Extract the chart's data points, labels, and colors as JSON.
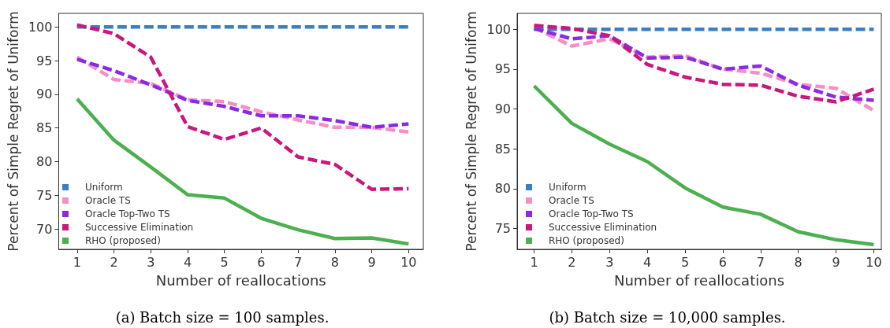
{
  "chart_data": [
    {
      "type": "line",
      "title": "(a) Batch size = 100 samples.",
      "xlabel": "Number of reallocations",
      "ylabel": "Percent of Simple Regret of Uniform",
      "x": [
        1,
        2,
        3,
        4,
        5,
        6,
        7,
        8,
        9,
        10
      ],
      "xlim": [
        0.5,
        10.4
      ],
      "xticks": [
        1,
        2,
        3,
        4,
        5,
        6,
        7,
        8,
        9,
        10
      ],
      "ylim": [
        67,
        102
      ],
      "yticks": [
        70,
        75,
        80,
        85,
        90,
        95,
        100
      ],
      "grid": false,
      "legend": "bottom left",
      "marker": "none",
      "series": [
        {
          "name": "Uniform",
          "color": "#3a7fc1",
          "line_style": "dashed",
          "values": [
            100,
            100,
            100,
            100,
            100,
            100,
            100,
            100,
            100,
            100
          ]
        },
        {
          "name": "Oracle TS",
          "color": "#f78fc4",
          "line_style": "dashed",
          "values": [
            95.5,
            92.2,
            91.6,
            89.2,
            88.9,
            87.4,
            86.2,
            85.1,
            85.1,
            84.4
          ]
        },
        {
          "name": "Oracle Top-Two TS",
          "color": "#8a2be2",
          "line_style": "dashed",
          "values": [
            95.2,
            93.5,
            91.4,
            89.1,
            88.2,
            86.8,
            86.8,
            86.1,
            85.1,
            85.6
          ]
        },
        {
          "name": "Successive Elimination",
          "color": "#c9177e",
          "line_style": "dashed",
          "values": [
            100.3,
            99,
            95.5,
            85.2,
            83.3,
            85,
            80.7,
            79.6,
            75.9,
            76
          ]
        },
        {
          "name": "RHO (proposed)",
          "color": "#4caf50",
          "line_style": "solid",
          "values": [
            89.3,
            83.2,
            79.2,
            75.1,
            74.6,
            71.6,
            69.9,
            68.6,
            68.7,
            67.8
          ]
        }
      ]
    },
    {
      "type": "line",
      "title": "(b) Batch size = 10,000 samples.",
      "xlabel": "Number of reallocations",
      "ylabel": "Percent of Simple Regret of Uniform",
      "x": [
        1,
        2,
        3,
        4,
        5,
        6,
        7,
        8,
        9,
        10
      ],
      "xlim": [
        0.55,
        10.2
      ],
      "xticks": [
        1,
        2,
        3,
        4,
        5,
        6,
        7,
        8,
        9,
        10
      ],
      "ylim": [
        72.4,
        102
      ],
      "yticks": [
        75,
        80,
        85,
        90,
        95,
        100
      ],
      "grid": false,
      "legend": "bottom left",
      "marker": "none",
      "series": [
        {
          "name": "Uniform",
          "color": "#3a7fc1",
          "line_style": "dashed",
          "values": [
            100,
            100,
            100,
            100,
            100,
            100,
            100,
            100,
            100,
            100
          ]
        },
        {
          "name": "Oracle TS",
          "color": "#f78fc4",
          "line_style": "dashed",
          "values": [
            100.2,
            97.9,
            98.8,
            96.5,
            96.7,
            95,
            94.5,
            93.1,
            92.6,
            89.8
          ]
        },
        {
          "name": "Oracle Top-Two TS",
          "color": "#8a2be2",
          "line_style": "dashed",
          "values": [
            100.1,
            98.8,
            99.2,
            96.4,
            96.5,
            95,
            95.4,
            93,
            91.5,
            91.1
          ]
        },
        {
          "name": "Successive Elimination",
          "color": "#c9177e",
          "line_style": "dashed",
          "values": [
            100.5,
            100.1,
            99.2,
            95.6,
            94,
            93.1,
            93,
            91.6,
            90.9,
            92.5
          ]
        },
        {
          "name": "RHO (proposed)",
          "color": "#4caf50",
          "line_style": "solid",
          "values": [
            92.9,
            88.2,
            85.6,
            83.4,
            80.1,
            77.7,
            76.8,
            74.6,
            73.6,
            73
          ]
        }
      ]
    }
  ]
}
